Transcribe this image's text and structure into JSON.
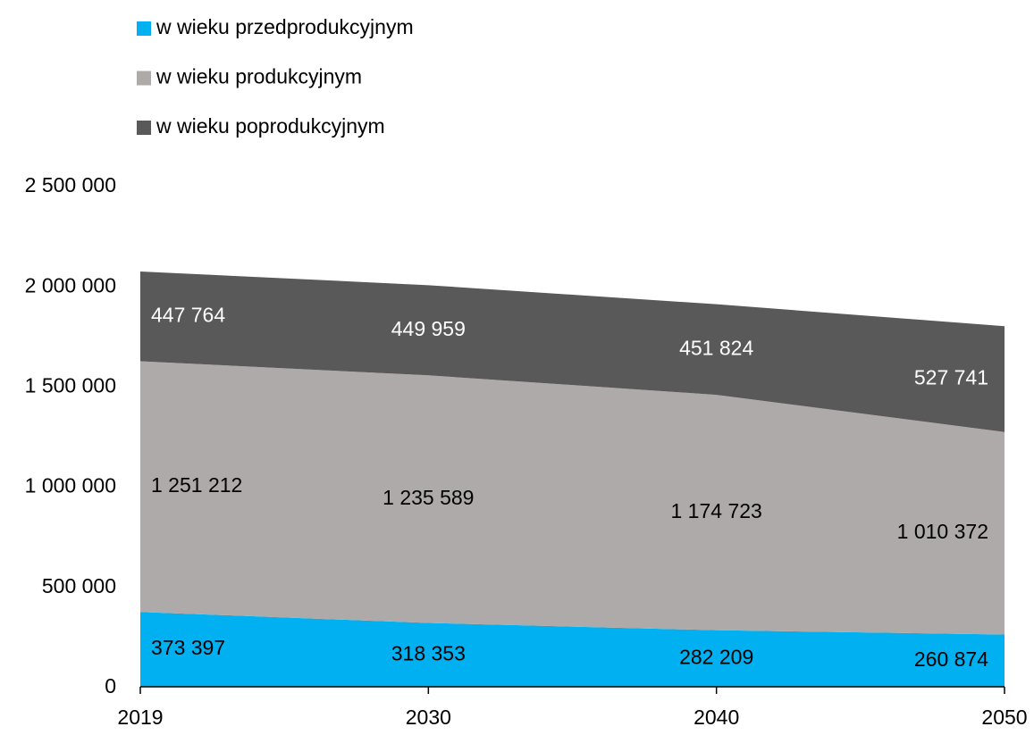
{
  "chart_data": {
    "type": "stacked_area",
    "categories": [
      "2019",
      "2030",
      "2040",
      "2050"
    ],
    "series": [
      {
        "name": "w wieku przedprodukcyjnym",
        "color": "#00b0f0",
        "label_color": "#000000",
        "values": [
          373397,
          318353,
          282209,
          260874
        ],
        "value_labels": [
          "373 397",
          "318 353",
          "282 209",
          "260 874"
        ]
      },
      {
        "name": "w wieku produkcyjnym",
        "color": "#aeaaaa",
        "label_color": "#000000",
        "values": [
          1251212,
          1235589,
          1174723,
          1010372
        ],
        "value_labels": [
          "1 251 212",
          "1 235 589",
          "1 174 723",
          "1 010 372"
        ]
      },
      {
        "name": "w wieku poprodukcyjnym",
        "color": "#595959",
        "label_color": "#ffffff",
        "values": [
          447764,
          449959,
          451824,
          527741
        ],
        "value_labels": [
          "447 764",
          "449 959",
          "451 824",
          "527 741"
        ]
      }
    ],
    "ylim": [
      0,
      2500000
    ],
    "yticks": [
      {
        "value": 0,
        "label": "0"
      },
      {
        "value": 500000,
        "label": "500 000"
      },
      {
        "value": 1000000,
        "label": "1 000 000"
      },
      {
        "value": 1500000,
        "label": "1 500 000"
      },
      {
        "value": 2000000,
        "label": "2 000 000"
      },
      {
        "value": 2500000,
        "label": "2 500 000"
      }
    ],
    "legend": "top-left"
  }
}
